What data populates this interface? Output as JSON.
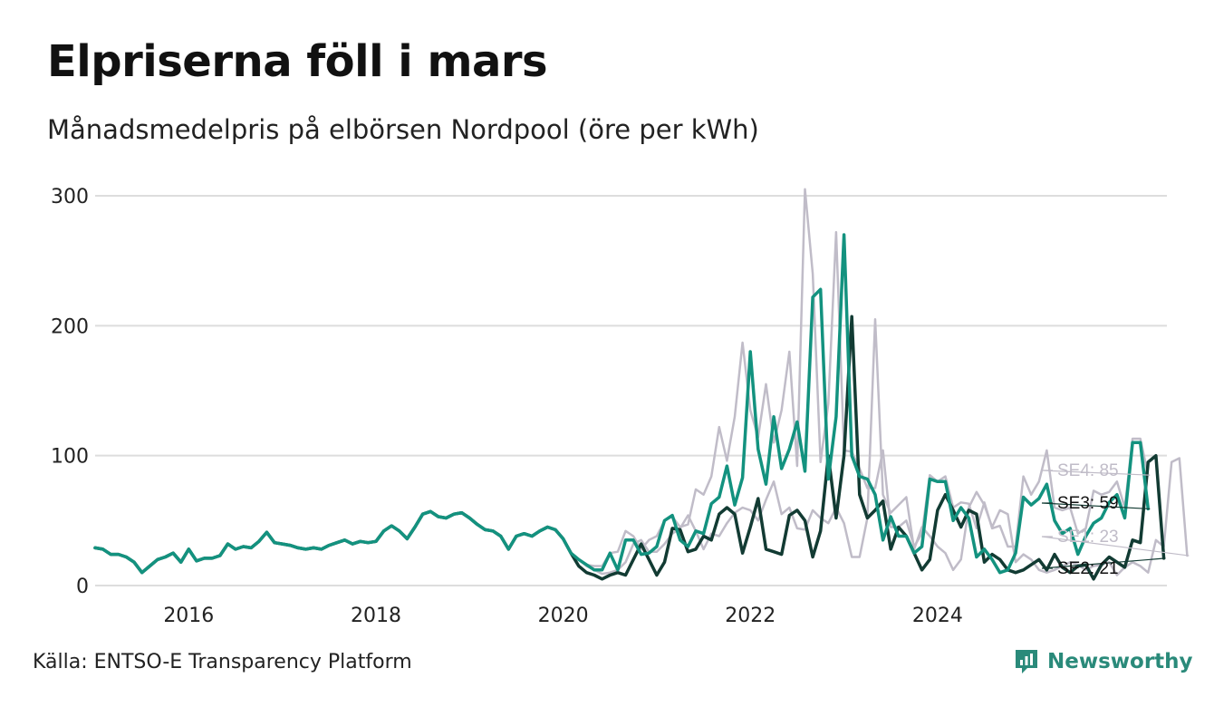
{
  "title": "Elpriserna föll i mars",
  "subtitle": "Månadsmedelpris på elbörsen Nordpool (öre per kWh)",
  "source": "Källa: ENTSO-E Transparency Platform",
  "brand": "Newsworthy",
  "colors": {
    "SE1": "#c0bcc8",
    "SE2": "#123b33",
    "SE3": "#13927f",
    "SE4": "#c0bcc8",
    "grid": "#dddddd",
    "brand": "#2a8a7a"
  },
  "chart_data": {
    "type": "line",
    "title": "Elpriserna föll i mars",
    "subtitle": "Månadsmedelpris på elbörsen Nordpool (öre per kWh)",
    "xlabel": "",
    "ylabel": "",
    "x_start": "2015-01",
    "x_end": "2026-03",
    "xlim": [
      2015.0,
      2026.45
    ],
    "ylim": [
      0,
      300
    ],
    "yticks": [
      0,
      100,
      200,
      300
    ],
    "xticks": [
      2016,
      2018,
      2020,
      2022,
      2024
    ],
    "grid": true,
    "series": [
      {
        "name": "SE1",
        "end_label": "SE1: 23",
        "values": [
          29,
          28,
          24,
          24,
          22,
          18,
          10,
          15,
          20,
          22,
          25,
          18,
          28,
          19,
          21,
          21,
          23,
          32,
          28,
          30,
          29,
          34,
          41,
          33,
          32,
          31,
          29,
          28,
          29,
          28,
          31,
          33,
          35,
          32,
          34,
          33,
          34,
          42,
          46,
          42,
          36,
          45,
          55,
          57,
          53,
          52,
          55,
          56,
          52,
          47,
          43,
          42,
          38,
          28,
          38,
          40,
          38,
          42,
          45,
          43,
          36,
          25,
          20,
          15,
          12,
          9,
          10,
          12,
          18,
          32,
          35,
          26,
          26,
          32,
          40,
          44,
          54,
          42,
          28,
          40,
          38,
          48,
          56,
          60,
          58,
          50,
          66,
          80,
          55,
          60,
          44,
          43,
          58,
          52,
          48,
          60,
          48,
          22,
          22,
          52,
          205,
          70,
          56,
          62,
          68,
          28,
          45,
          38,
          30,
          25,
          12,
          20,
          60,
          72,
          62,
          45,
          58,
          55,
          18,
          24,
          20,
          12,
          10,
          12,
          15,
          18,
          16,
          12,
          15,
          16,
          18,
          8,
          14,
          18,
          15,
          10,
          35,
          30,
          95,
          98,
          23
        ]
      },
      {
        "name": "SE2",
        "end_label": "SE2: 21",
        "values": [
          29,
          28,
          24,
          24,
          22,
          18,
          10,
          15,
          20,
          22,
          25,
          18,
          28,
          19,
          21,
          21,
          23,
          32,
          28,
          30,
          29,
          34,
          41,
          33,
          32,
          31,
          29,
          28,
          29,
          28,
          31,
          33,
          35,
          32,
          34,
          33,
          34,
          42,
          46,
          42,
          36,
          45,
          55,
          57,
          53,
          52,
          55,
          56,
          52,
          47,
          43,
          42,
          38,
          28,
          38,
          40,
          38,
          42,
          45,
          43,
          36,
          25,
          15,
          10,
          8,
          5,
          8,
          10,
          8,
          20,
          32,
          20,
          8,
          18,
          44,
          43,
          26,
          28,
          38,
          35,
          55,
          60,
          55,
          25,
          45,
          67,
          28,
          26,
          24,
          54,
          58,
          50,
          22,
          42,
          100,
          52,
          100,
          207,
          70,
          52,
          58,
          65,
          28,
          45,
          38,
          25,
          12,
          20,
          58,
          70,
          58,
          45,
          58,
          55,
          18,
          24,
          20,
          12,
          10,
          12,
          16,
          20,
          12,
          24,
          14,
          10,
          15,
          16,
          5,
          16,
          22,
          18,
          14,
          35,
          33,
          95,
          100,
          21
        ]
      },
      {
        "name": "SE3",
        "end_label": "SE3: 59",
        "values": [
          29,
          28,
          24,
          24,
          22,
          18,
          10,
          15,
          20,
          22,
          25,
          18,
          28,
          19,
          21,
          21,
          23,
          32,
          28,
          30,
          29,
          34,
          41,
          33,
          32,
          31,
          29,
          28,
          29,
          28,
          31,
          33,
          35,
          32,
          34,
          33,
          34,
          42,
          46,
          42,
          36,
          45,
          55,
          57,
          53,
          52,
          55,
          56,
          52,
          47,
          43,
          42,
          38,
          28,
          38,
          40,
          38,
          42,
          45,
          43,
          36,
          25,
          20,
          16,
          12,
          12,
          25,
          12,
          35,
          35,
          24,
          25,
          30,
          50,
          54,
          35,
          30,
          42,
          40,
          63,
          68,
          92,
          62,
          83,
          180,
          105,
          78,
          130,
          90,
          105,
          126,
          88,
          222,
          228,
          82,
          130,
          270,
          100,
          84,
          82,
          70,
          35,
          53,
          38,
          38,
          25,
          30,
          82,
          80,
          80,
          50,
          60,
          52,
          22,
          28,
          20,
          10,
          12,
          25,
          68,
          62,
          67,
          78,
          50,
          40,
          44,
          24,
          38,
          48,
          52,
          64,
          70,
          52,
          110,
          110,
          59
        ]
      },
      {
        "name": "SE4",
        "end_label": "SE4: 85",
        "values": [
          29,
          28,
          24,
          24,
          22,
          18,
          10,
          15,
          20,
          22,
          25,
          18,
          28,
          19,
          21,
          21,
          23,
          32,
          28,
          30,
          29,
          34,
          41,
          33,
          32,
          31,
          29,
          28,
          29,
          28,
          31,
          33,
          35,
          32,
          34,
          33,
          34,
          42,
          46,
          42,
          36,
          45,
          55,
          57,
          53,
          52,
          55,
          56,
          52,
          47,
          43,
          42,
          38,
          28,
          38,
          40,
          38,
          42,
          45,
          43,
          36,
          25,
          20,
          16,
          15,
          15,
          25,
          26,
          42,
          38,
          28,
          35,
          38,
          50,
          53,
          45,
          47,
          74,
          70,
          84,
          122,
          96,
          130,
          187,
          135,
          114,
          155,
          110,
          135,
          180,
          92,
          305,
          240,
          95,
          140,
          272,
          104,
          103,
          90,
          75,
          75,
          104,
          45,
          45,
          50,
          30,
          40,
          85,
          80,
          84,
          60,
          64,
          63,
          44,
          64,
          44,
          46,
          30,
          30,
          84,
          70,
          80,
          104,
          60,
          58,
          60,
          40,
          44,
          73,
          70,
          72,
          80,
          60,
          113,
          113,
          85
        ]
      }
    ]
  }
}
